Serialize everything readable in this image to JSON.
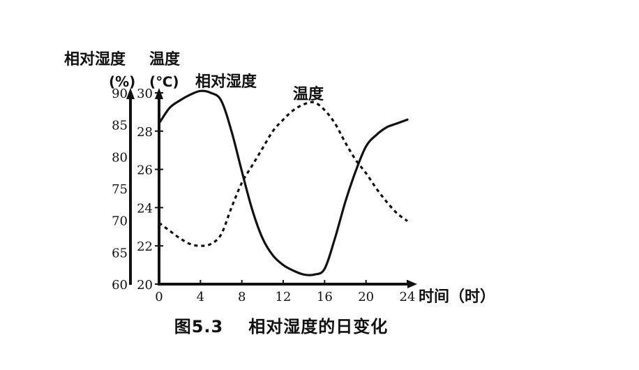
{
  "chart_data": {
    "type": "line",
    "caption_number": "图5.3",
    "caption_title": "相对湿度的日变化",
    "y_left_axis": {
      "title_line1": "相对湿度",
      "title_line2": "(%)",
      "ticks": [
        60,
        65,
        70,
        75,
        80,
        85,
        90
      ],
      "range": [
        60,
        90
      ]
    },
    "y_right_axis": {
      "title_line1": "温度",
      "title_line2": "(℃)",
      "ticks": [
        20,
        22,
        24,
        26,
        28,
        30
      ],
      "range": [
        20,
        30
      ]
    },
    "x_axis": {
      "label": "时间（时）",
      "ticks": [
        0,
        4,
        8,
        12,
        16,
        20,
        24
      ],
      "range": [
        0,
        24
      ]
    },
    "series": [
      {
        "name": "相对湿度",
        "style": "solid",
        "axis": "right",
        "x": [
          0,
          1,
          2,
          3,
          4,
          5,
          6,
          7,
          8,
          9,
          10,
          11,
          12,
          13,
          14,
          15,
          16,
          17,
          18,
          19,
          20,
          21,
          22,
          23,
          24
        ],
        "y": [
          28.4,
          29.2,
          29.6,
          29.9,
          30.1,
          30.0,
          29.6,
          28.0,
          25.9,
          23.9,
          22.4,
          21.5,
          21.0,
          20.7,
          20.5,
          20.5,
          20.8,
          22.4,
          24.3,
          25.9,
          27.2,
          27.8,
          28.2,
          28.4,
          28.6
        ]
      },
      {
        "name": "温度",
        "style": "dashed",
        "axis": "right",
        "x": [
          0,
          1,
          2,
          3,
          4,
          5,
          6,
          7,
          8,
          9,
          10,
          11,
          12,
          13,
          14,
          15,
          16,
          17,
          18,
          19,
          20,
          21,
          22,
          23,
          24
        ],
        "y": [
          23.2,
          22.8,
          22.4,
          22.1,
          22.0,
          22.1,
          22.6,
          24.0,
          25.3,
          26.2,
          27.1,
          28.0,
          28.6,
          29.1,
          29.4,
          29.5,
          29.1,
          28.4,
          27.4,
          26.5,
          25.8,
          25.0,
          24.3,
          23.7,
          23.3
        ]
      }
    ]
  }
}
